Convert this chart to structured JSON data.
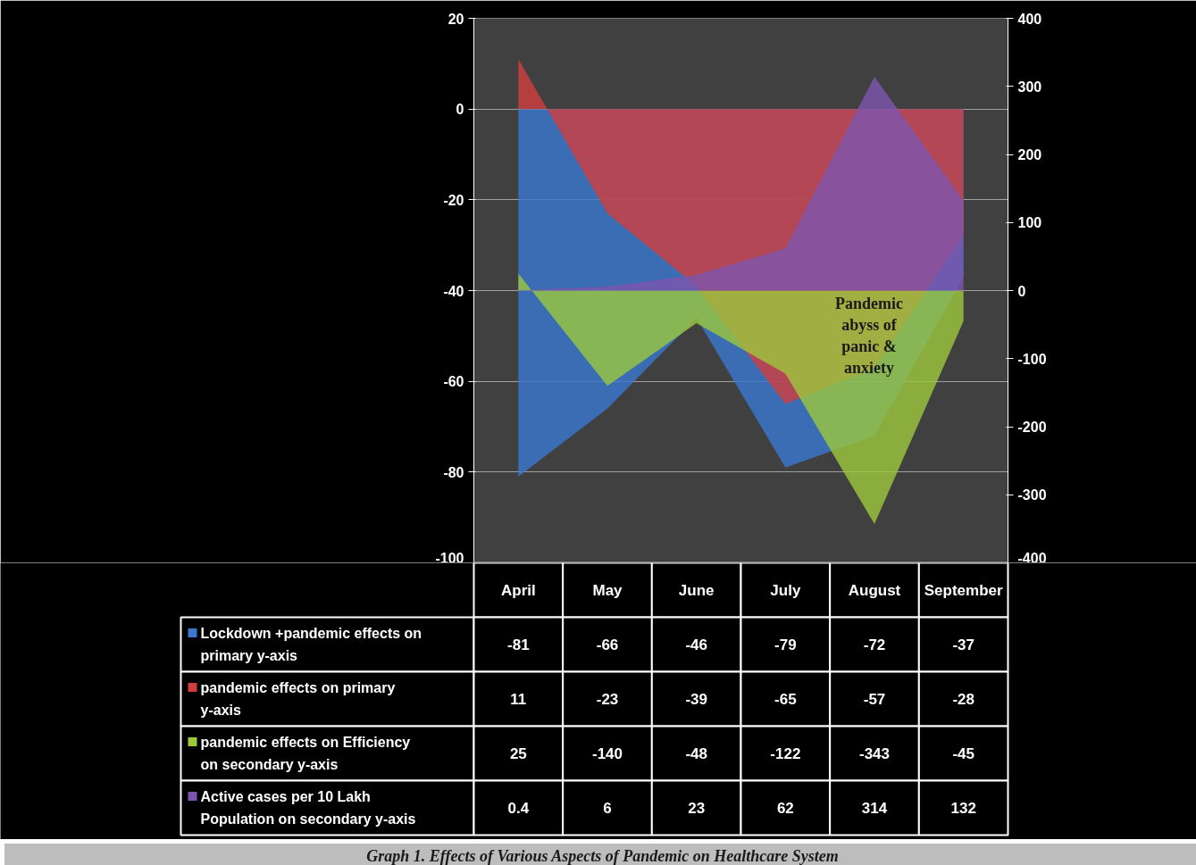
{
  "chart_data": {
    "type": "area",
    "categories": [
      "April",
      "May",
      "June",
      "July",
      "August",
      "September"
    ],
    "series": [
      {
        "name": "Lockdown +pandemic effects on primary y-axis",
        "color": "#3a78d2",
        "values": [
          -81,
          -66,
          -46,
          -79,
          -72,
          -37
        ]
      },
      {
        "name": "pandemic effects on primary y-axis",
        "color": "#d23d3d",
        "values": [
          11,
          -23,
          -39,
          -65,
          -57,
          -28
        ]
      },
      {
        "name": "pandemic effects on Efficiency on secondary y-axis",
        "color": "#9cc83c",
        "axis": "y2",
        "values": [
          25,
          -140,
          -48,
          -122,
          -343,
          -45
        ]
      },
      {
        "name": "Active cases per 10 Lakh Population on secondary y-axis",
        "color": "#7d55ae",
        "axis": "y2",
        "values": [
          0.4,
          6,
          23,
          62,
          314,
          132
        ]
      }
    ],
    "ylim": [
      -100,
      20
    ],
    "yticks": [
      -100,
      -80,
      -60,
      -40,
      -20,
      0,
      20
    ],
    "y2lim": [
      -400,
      400
    ],
    "y2ticks": [
      -400,
      -300,
      -200,
      -100,
      0,
      100,
      200,
      300,
      400
    ],
    "grid": "y",
    "legend": "bottom",
    "data_labels": true,
    "annotations": [
      "Pandemic abyss of panic & anxiety",
      "Graph 1. Effects of Various Aspects of Pandemic on Healthcare System"
    ]
  }
}
